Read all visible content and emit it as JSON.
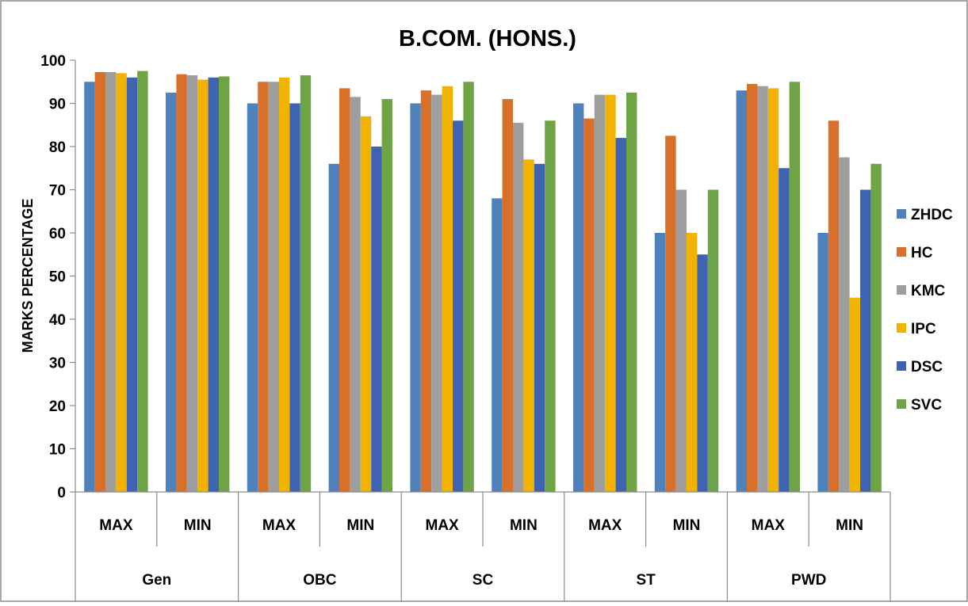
{
  "chart_data": {
    "type": "bar",
    "title": "B.COM. (HONS.)",
    "xlabel": "",
    "ylabel": "MARKS PERCENTAGE",
    "ylim": [
      0,
      100
    ],
    "yticks": [
      0,
      10,
      20,
      30,
      40,
      50,
      60,
      70,
      80,
      90,
      100
    ],
    "grid": false,
    "legend_position": "right",
    "groups": [
      "Gen",
      "OBC",
      "SC",
      "ST",
      "PWD"
    ],
    "categories": [
      "MAX",
      "MIN",
      "MAX",
      "MIN",
      "MAX",
      "MIN",
      "MAX",
      "MIN",
      "MAX",
      "MIN"
    ],
    "series": [
      {
        "name": "ZHDC",
        "color": "#4f81bd",
        "values": [
          95,
          92.5,
          90,
          76,
          90,
          68,
          90,
          60,
          93,
          60
        ]
      },
      {
        "name": "HC",
        "color": "#d9702a",
        "values": [
          97.25,
          96.75,
          95,
          93.5,
          93,
          91,
          86.5,
          82.5,
          94.5,
          86
        ]
      },
      {
        "name": "KMC",
        "color": "#9e9e9e",
        "values": [
          97.25,
          96.5,
          95,
          91.5,
          92,
          85.5,
          92,
          70,
          94,
          77.5
        ]
      },
      {
        "name": "IPC",
        "color": "#f2b200",
        "values": [
          97,
          95.5,
          96,
          87,
          94,
          77,
          92,
          60,
          93.5,
          45
        ]
      },
      {
        "name": "DSC",
        "color": "#3e63b0",
        "values": [
          96,
          96,
          90,
          80,
          86,
          76,
          82,
          55,
          75,
          70
        ]
      },
      {
        "name": "SVC",
        "color": "#6ea346",
        "values": [
          97.5,
          96.25,
          96.5,
          91,
          95,
          86,
          92.5,
          70,
          95,
          76
        ]
      }
    ]
  }
}
